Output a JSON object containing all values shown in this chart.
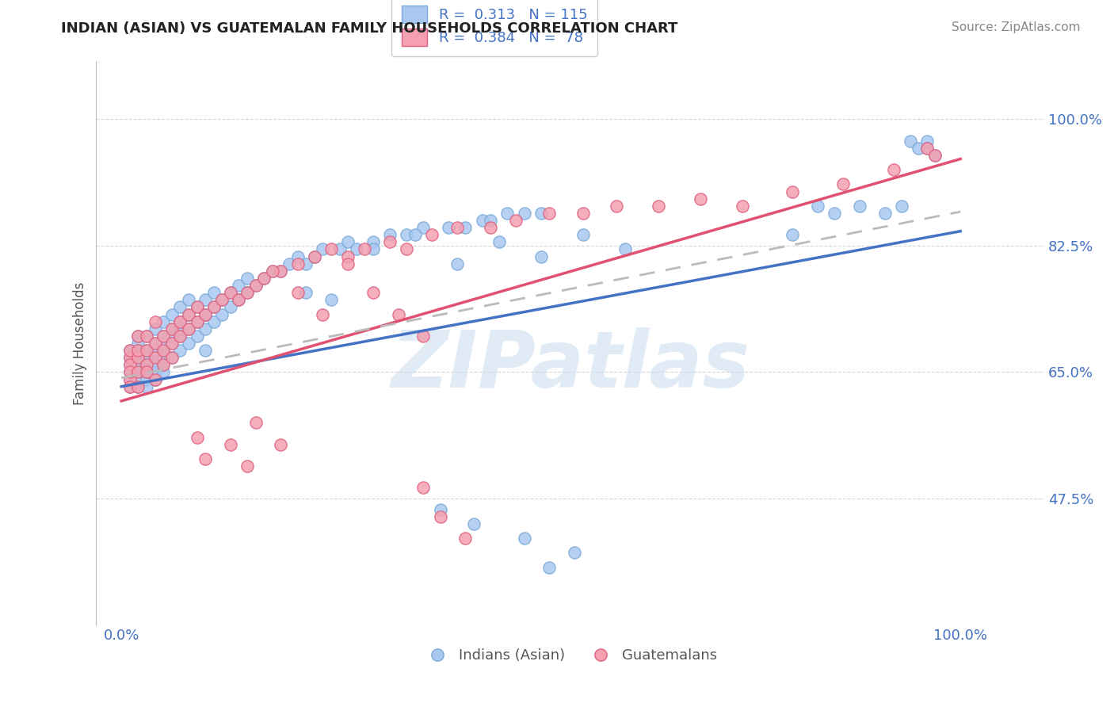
{
  "title": "INDIAN (ASIAN) VS GUATEMALAN FAMILY HOUSEHOLDS CORRELATION CHART",
  "source_text": "Source: ZipAtlas.com",
  "ylabel": "Family Households",
  "legend_labels": [
    "Indians (Asian)",
    "Guatemalans"
  ],
  "blue_R": 0.313,
  "blue_N": 115,
  "pink_R": 0.384,
  "pink_N": 78,
  "blue_color": "#A8C8F0",
  "pink_color": "#F4A0B0",
  "blue_edge_color": "#7BAAD8",
  "pink_edge_color": "#E06080",
  "line_blue_color": "#4472C4",
  "line_pink_color": "#E05070",
  "line_dashed_color": "#BBBBBB",
  "title_color": "#222222",
  "tick_label_color": "#4472C4",
  "background_color": "#FFFFFF",
  "yticks": [
    0.475,
    0.65,
    0.825,
    1.0
  ],
  "ytick_labels": [
    "47.5%",
    "65.0%",
    "82.5%",
    "100.0%"
  ],
  "xticks": [
    0.0,
    1.0
  ],
  "xtick_labels": [
    "0.0%",
    "100.0%"
  ],
  "xlim": [
    -0.03,
    1.1
  ],
  "ylim": [
    0.3,
    1.08
  ],
  "blue_x": [
    0.01,
    0.01,
    0.01,
    0.01,
    0.01,
    0.01,
    0.02,
    0.02,
    0.02,
    0.02,
    0.02,
    0.02,
    0.02,
    0.02,
    0.03,
    0.03,
    0.03,
    0.03,
    0.03,
    0.03,
    0.03,
    0.04,
    0.04,
    0.04,
    0.04,
    0.04,
    0.04,
    0.04,
    0.05,
    0.05,
    0.05,
    0.05,
    0.05,
    0.05,
    0.05,
    0.06,
    0.06,
    0.06,
    0.06,
    0.06,
    0.07,
    0.07,
    0.07,
    0.07,
    0.07,
    0.08,
    0.08,
    0.08,
    0.08,
    0.09,
    0.09,
    0.09,
    0.1,
    0.1,
    0.1,
    0.1,
    0.11,
    0.11,
    0.11,
    0.12,
    0.12,
    0.13,
    0.13,
    0.14,
    0.14,
    0.15,
    0.15,
    0.16,
    0.17,
    0.18,
    0.19,
    0.2,
    0.21,
    0.22,
    0.23,
    0.24,
    0.26,
    0.27,
    0.28,
    0.3,
    0.32,
    0.34,
    0.36,
    0.39,
    0.41,
    0.43,
    0.44,
    0.46,
    0.48,
    0.5,
    0.22,
    0.25,
    0.3,
    0.35,
    0.4,
    0.45,
    0.5,
    0.55,
    0.6,
    0.8,
    0.83,
    0.85,
    0.88,
    0.91,
    0.93,
    0.94,
    0.95,
    0.96,
    0.96,
    0.97,
    0.38,
    0.42,
    0.48,
    0.51,
    0.54
  ],
  "blue_y": [
    0.64,
    0.66,
    0.68,
    0.63,
    0.67,
    0.65,
    0.65,
    0.67,
    0.69,
    0.63,
    0.66,
    0.64,
    0.68,
    0.7,
    0.66,
    0.68,
    0.7,
    0.64,
    0.67,
    0.65,
    0.63,
    0.67,
    0.69,
    0.71,
    0.65,
    0.68,
    0.66,
    0.64,
    0.68,
    0.7,
    0.72,
    0.66,
    0.69,
    0.67,
    0.65,
    0.69,
    0.71,
    0.73,
    0.67,
    0.7,
    0.7,
    0.72,
    0.74,
    0.68,
    0.71,
    0.71,
    0.73,
    0.75,
    0.69,
    0.72,
    0.74,
    0.7,
    0.73,
    0.75,
    0.71,
    0.68,
    0.74,
    0.76,
    0.72,
    0.75,
    0.73,
    0.76,
    0.74,
    0.77,
    0.75,
    0.78,
    0.76,
    0.77,
    0.78,
    0.79,
    0.79,
    0.8,
    0.81,
    0.8,
    0.81,
    0.82,
    0.82,
    0.83,
    0.82,
    0.83,
    0.84,
    0.84,
    0.85,
    0.85,
    0.85,
    0.86,
    0.86,
    0.87,
    0.87,
    0.87,
    0.76,
    0.75,
    0.82,
    0.84,
    0.8,
    0.83,
    0.81,
    0.84,
    0.82,
    0.84,
    0.88,
    0.87,
    0.88,
    0.87,
    0.88,
    0.97,
    0.96,
    0.97,
    0.96,
    0.95,
    0.46,
    0.44,
    0.42,
    0.38,
    0.4
  ],
  "pink_x": [
    0.01,
    0.01,
    0.01,
    0.01,
    0.01,
    0.01,
    0.02,
    0.02,
    0.02,
    0.02,
    0.02,
    0.03,
    0.03,
    0.03,
    0.03,
    0.04,
    0.04,
    0.04,
    0.04,
    0.05,
    0.05,
    0.05,
    0.06,
    0.06,
    0.06,
    0.07,
    0.07,
    0.08,
    0.08,
    0.09,
    0.09,
    0.1,
    0.11,
    0.12,
    0.13,
    0.14,
    0.15,
    0.16,
    0.17,
    0.19,
    0.21,
    0.23,
    0.25,
    0.27,
    0.29,
    0.32,
    0.34,
    0.37,
    0.4,
    0.44,
    0.47,
    0.51,
    0.55,
    0.59,
    0.64,
    0.69,
    0.74,
    0.8,
    0.86,
    0.92,
    0.96,
    0.97,
    0.18,
    0.21,
    0.24,
    0.27,
    0.3,
    0.33,
    0.36,
    0.16,
    0.19,
    0.13,
    0.15,
    0.09,
    0.1,
    0.36,
    0.38,
    0.41
  ],
  "pink_y": [
    0.64,
    0.67,
    0.63,
    0.66,
    0.68,
    0.65,
    0.65,
    0.67,
    0.7,
    0.63,
    0.68,
    0.66,
    0.68,
    0.65,
    0.7,
    0.67,
    0.69,
    0.64,
    0.72,
    0.68,
    0.7,
    0.66,
    0.69,
    0.71,
    0.67,
    0.7,
    0.72,
    0.71,
    0.73,
    0.72,
    0.74,
    0.73,
    0.74,
    0.75,
    0.76,
    0.75,
    0.76,
    0.77,
    0.78,
    0.79,
    0.8,
    0.81,
    0.82,
    0.81,
    0.82,
    0.83,
    0.82,
    0.84,
    0.85,
    0.85,
    0.86,
    0.87,
    0.87,
    0.88,
    0.88,
    0.89,
    0.88,
    0.9,
    0.91,
    0.93,
    0.96,
    0.95,
    0.79,
    0.76,
    0.73,
    0.8,
    0.76,
    0.73,
    0.7,
    0.58,
    0.55,
    0.55,
    0.52,
    0.56,
    0.53,
    0.49,
    0.45,
    0.42
  ],
  "watermark_text": "ZIPatlas",
  "watermark_color": "#C8DCF0",
  "watermark_alpha": 0.55,
  "grid_color": "#CCCCCC",
  "grid_linestyle": "--",
  "grid_alpha": 0.8,
  "blue_line_x0": 0.0,
  "blue_line_x1": 1.0,
  "blue_line_y0": 0.63,
  "blue_line_y1": 0.845,
  "pink_line_x0": 0.0,
  "pink_line_x1": 1.0,
  "pink_line_y0": 0.61,
  "pink_line_y1": 0.945,
  "dashed_line_x0": 0.0,
  "dashed_line_x1": 1.0,
  "dashed_line_y0": 0.642,
  "dashed_line_y1": 0.872
}
